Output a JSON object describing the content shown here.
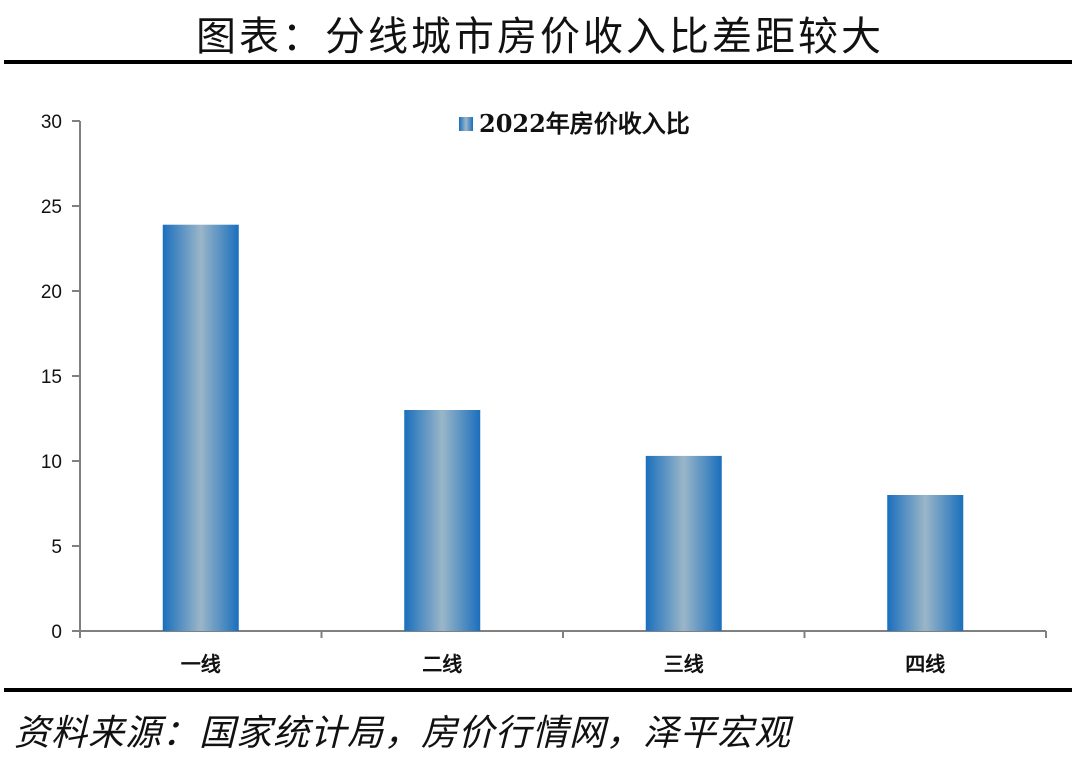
{
  "header": {
    "title": "图表：分线城市房价收入比差距较大"
  },
  "footer": {
    "source": "资料来源：国家统计局，房价行情网，泽平宏观"
  },
  "colors": {
    "bar_edge": "#1a6fbd",
    "bar_center": "#9ab6c8",
    "axis": "#808080",
    "rule": "#000000"
  },
  "chart_data": {
    "type": "bar",
    "categories": [
      "一线",
      "二线",
      "三线",
      "四线"
    ],
    "series": [
      {
        "name": "2022年房价收入比",
        "values": [
          23.9,
          13.0,
          10.3,
          8.0
        ]
      }
    ],
    "ylim": [
      0,
      30
    ],
    "yticks": [
      0,
      5,
      10,
      15,
      20,
      25,
      30
    ],
    "legend": "top-center",
    "grid": false
  }
}
